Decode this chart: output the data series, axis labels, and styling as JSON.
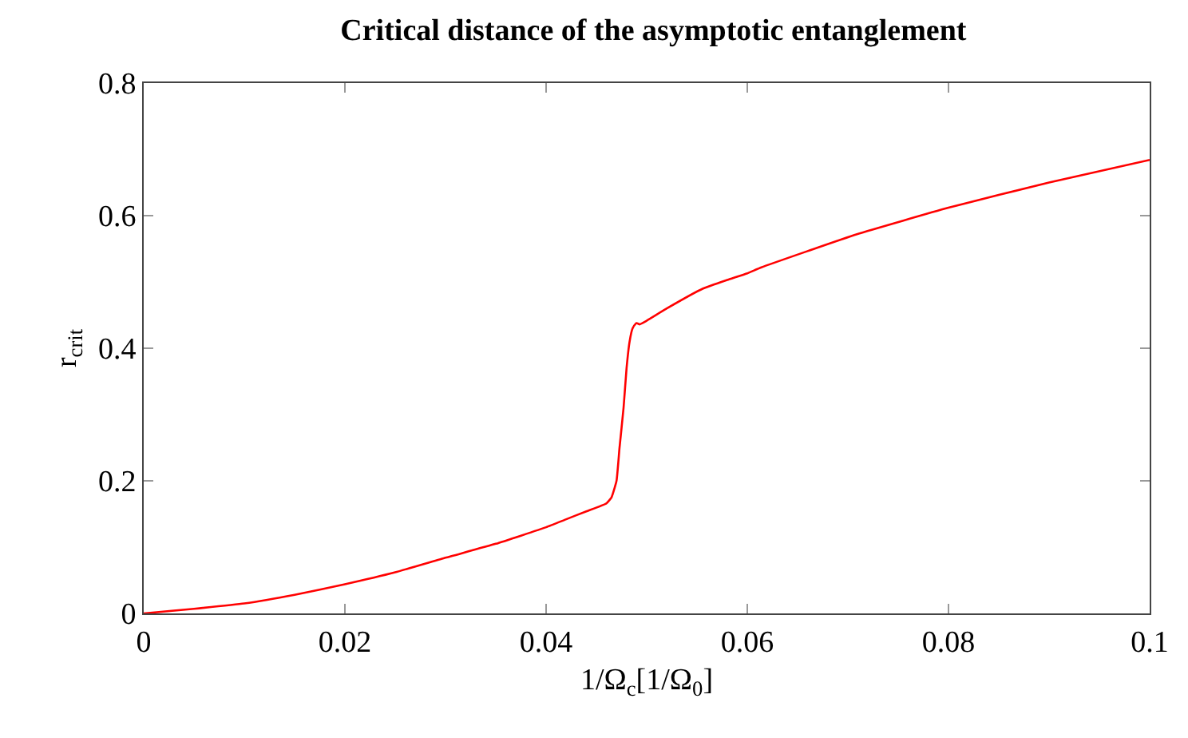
{
  "chart_data": {
    "type": "line",
    "title": "Critical distance of the asymptotic entanglement",
    "xlabel": "1/Ω$_{c}$[1/Ω$_{0}$]",
    "ylabel": "r$_{crit}$",
    "x": [
      0,
      0.005,
      0.01,
      0.015,
      0.02,
      0.025,
      0.03,
      0.035,
      0.04,
      0.042,
      0.044,
      0.046,
      0.0465,
      0.047,
      0.0473,
      0.0477,
      0.048,
      0.0483,
      0.0486,
      0.0489,
      0.049,
      0.0493,
      0.0496,
      0.052,
      0.0556,
      0.058,
      0.06,
      0.0614,
      0.0709,
      0.08,
      0.09,
      0.1
    ],
    "series": [
      {
        "color": "#ff0000",
        "values": [
          0,
          0.007,
          0.015,
          0.028,
          0.044,
          0.062,
          0.084,
          0.105,
          0.13,
          0.142,
          0.154,
          0.166,
          0.175,
          0.2,
          0.25,
          0.31,
          0.37,
          0.41,
          0.43,
          0.437,
          0.438,
          0.436,
          0.438,
          0.46,
          0.49,
          0.503,
          0.513,
          0.522,
          0.572,
          0.612,
          0.65,
          0.684
        ]
      }
    ],
    "xlim": [
      0,
      0.1
    ],
    "ylim": [
      0,
      0.8
    ],
    "xticks": [
      0,
      0.02,
      0.04,
      0.06,
      0.08,
      0.1
    ],
    "yticks": [
      0,
      0.2,
      0.4,
      0.6,
      0.8
    ],
    "line_style": "solid",
    "marker": "none"
  }
}
